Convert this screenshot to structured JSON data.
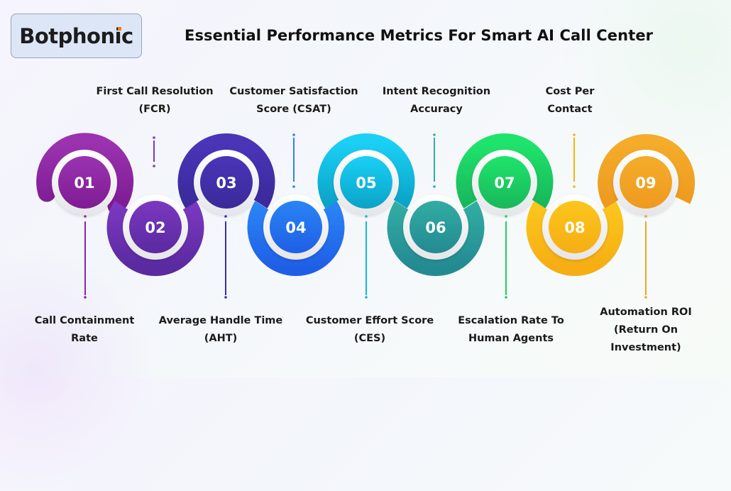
{
  "brand": {
    "logo_text": "Botphonic",
    "logo_accent_color": "#f07b22"
  },
  "header": {
    "title": "Essential Performance Metrics For Smart AI Call Center"
  },
  "metrics": [
    {
      "number": "01",
      "label_line1": "Call Containment",
      "label_line2": "Rate",
      "label_line3": "",
      "position": "bottom",
      "color_top": "#9b33b0",
      "color_bottom": "#7e1b93"
    },
    {
      "number": "02",
      "label_line1": "First Call Resolution",
      "label_line2": "(FCR)",
      "label_line3": "",
      "position": "top",
      "color_top": "#7b38c0",
      "color_bottom": "#5a2aa0"
    },
    {
      "number": "03",
      "label_line1": "Average Handle Time",
      "label_line2": "(AHT)",
      "label_line3": "",
      "position": "bottom",
      "color_top": "#4a35b8",
      "color_bottom": "#3a2a9a"
    },
    {
      "number": "04",
      "label_line1": "Customer Satisfaction",
      "label_line2": "Score (CSAT)",
      "label_line3": "",
      "position": "top",
      "color_top": "#2a84f4",
      "color_bottom": "#1f5fe6"
    },
    {
      "number": "05",
      "label_line1": "Customer Effort Score",
      "label_line2": "(CES)",
      "label_line3": "",
      "position": "bottom",
      "color_top": "#1bd0f5",
      "color_bottom": "#0aa3c7"
    },
    {
      "number": "06",
      "label_line1": "Intent Recognition",
      "label_line2": "Accuracy",
      "label_line3": "",
      "position": "top",
      "color_top": "#32aca3",
      "color_bottom": "#238a92"
    },
    {
      "number": "07",
      "label_line1": "Escalation Rate To",
      "label_line2": "Human Agents",
      "label_line3": "",
      "position": "bottom",
      "color_top": "#1fe46c",
      "color_bottom": "#18b85a"
    },
    {
      "number": "08",
      "label_line1": "Cost Per",
      "label_line2": "Contact",
      "label_line3": "",
      "position": "top",
      "color_top": "#fbc61c",
      "color_bottom": "#f6ae14"
    },
    {
      "number": "09",
      "label_line1": "Automation ROI",
      "label_line2": "(Return On",
      "label_line3": "Investment)",
      "position": "bottom",
      "color_top": "#f4ac2a",
      "color_bottom": "#ee9a1f"
    }
  ]
}
